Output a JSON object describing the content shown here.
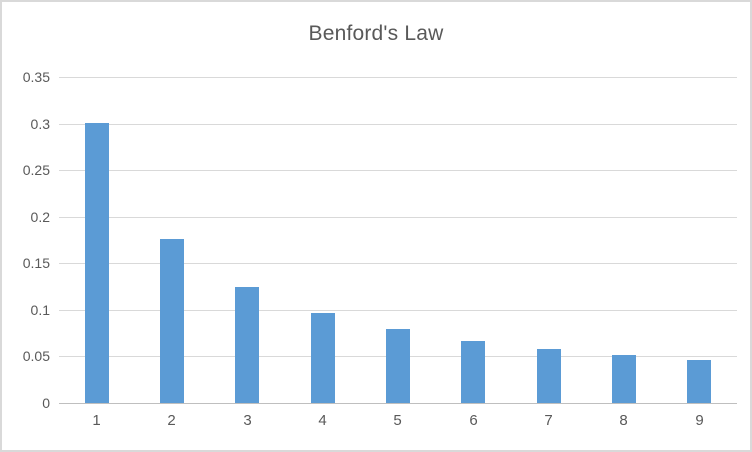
{
  "chart_data": {
    "type": "bar",
    "title": "Benford's Law",
    "categories": [
      "1",
      "2",
      "3",
      "4",
      "5",
      "6",
      "7",
      "8",
      "9"
    ],
    "values": [
      0.301,
      0.176,
      0.125,
      0.097,
      0.079,
      0.067,
      0.058,
      0.051,
      0.046
    ],
    "xlabel": "",
    "ylabel": "",
    "ylim": [
      0,
      0.35
    ],
    "yticks": [
      0,
      0.05,
      0.1,
      0.15,
      0.2,
      0.25,
      0.3,
      0.35
    ],
    "ytick_labels": [
      "0",
      "0.05",
      "0.1",
      "0.15",
      "0.2",
      "0.25",
      "0.3",
      "0.35"
    ],
    "grid": true,
    "legend": "none",
    "colors": {
      "bar": "#5b9bd5",
      "text": "#595959",
      "grid": "#d9d9d9",
      "axis": "#bfbfbf",
      "border": "#d9d9d9"
    }
  }
}
